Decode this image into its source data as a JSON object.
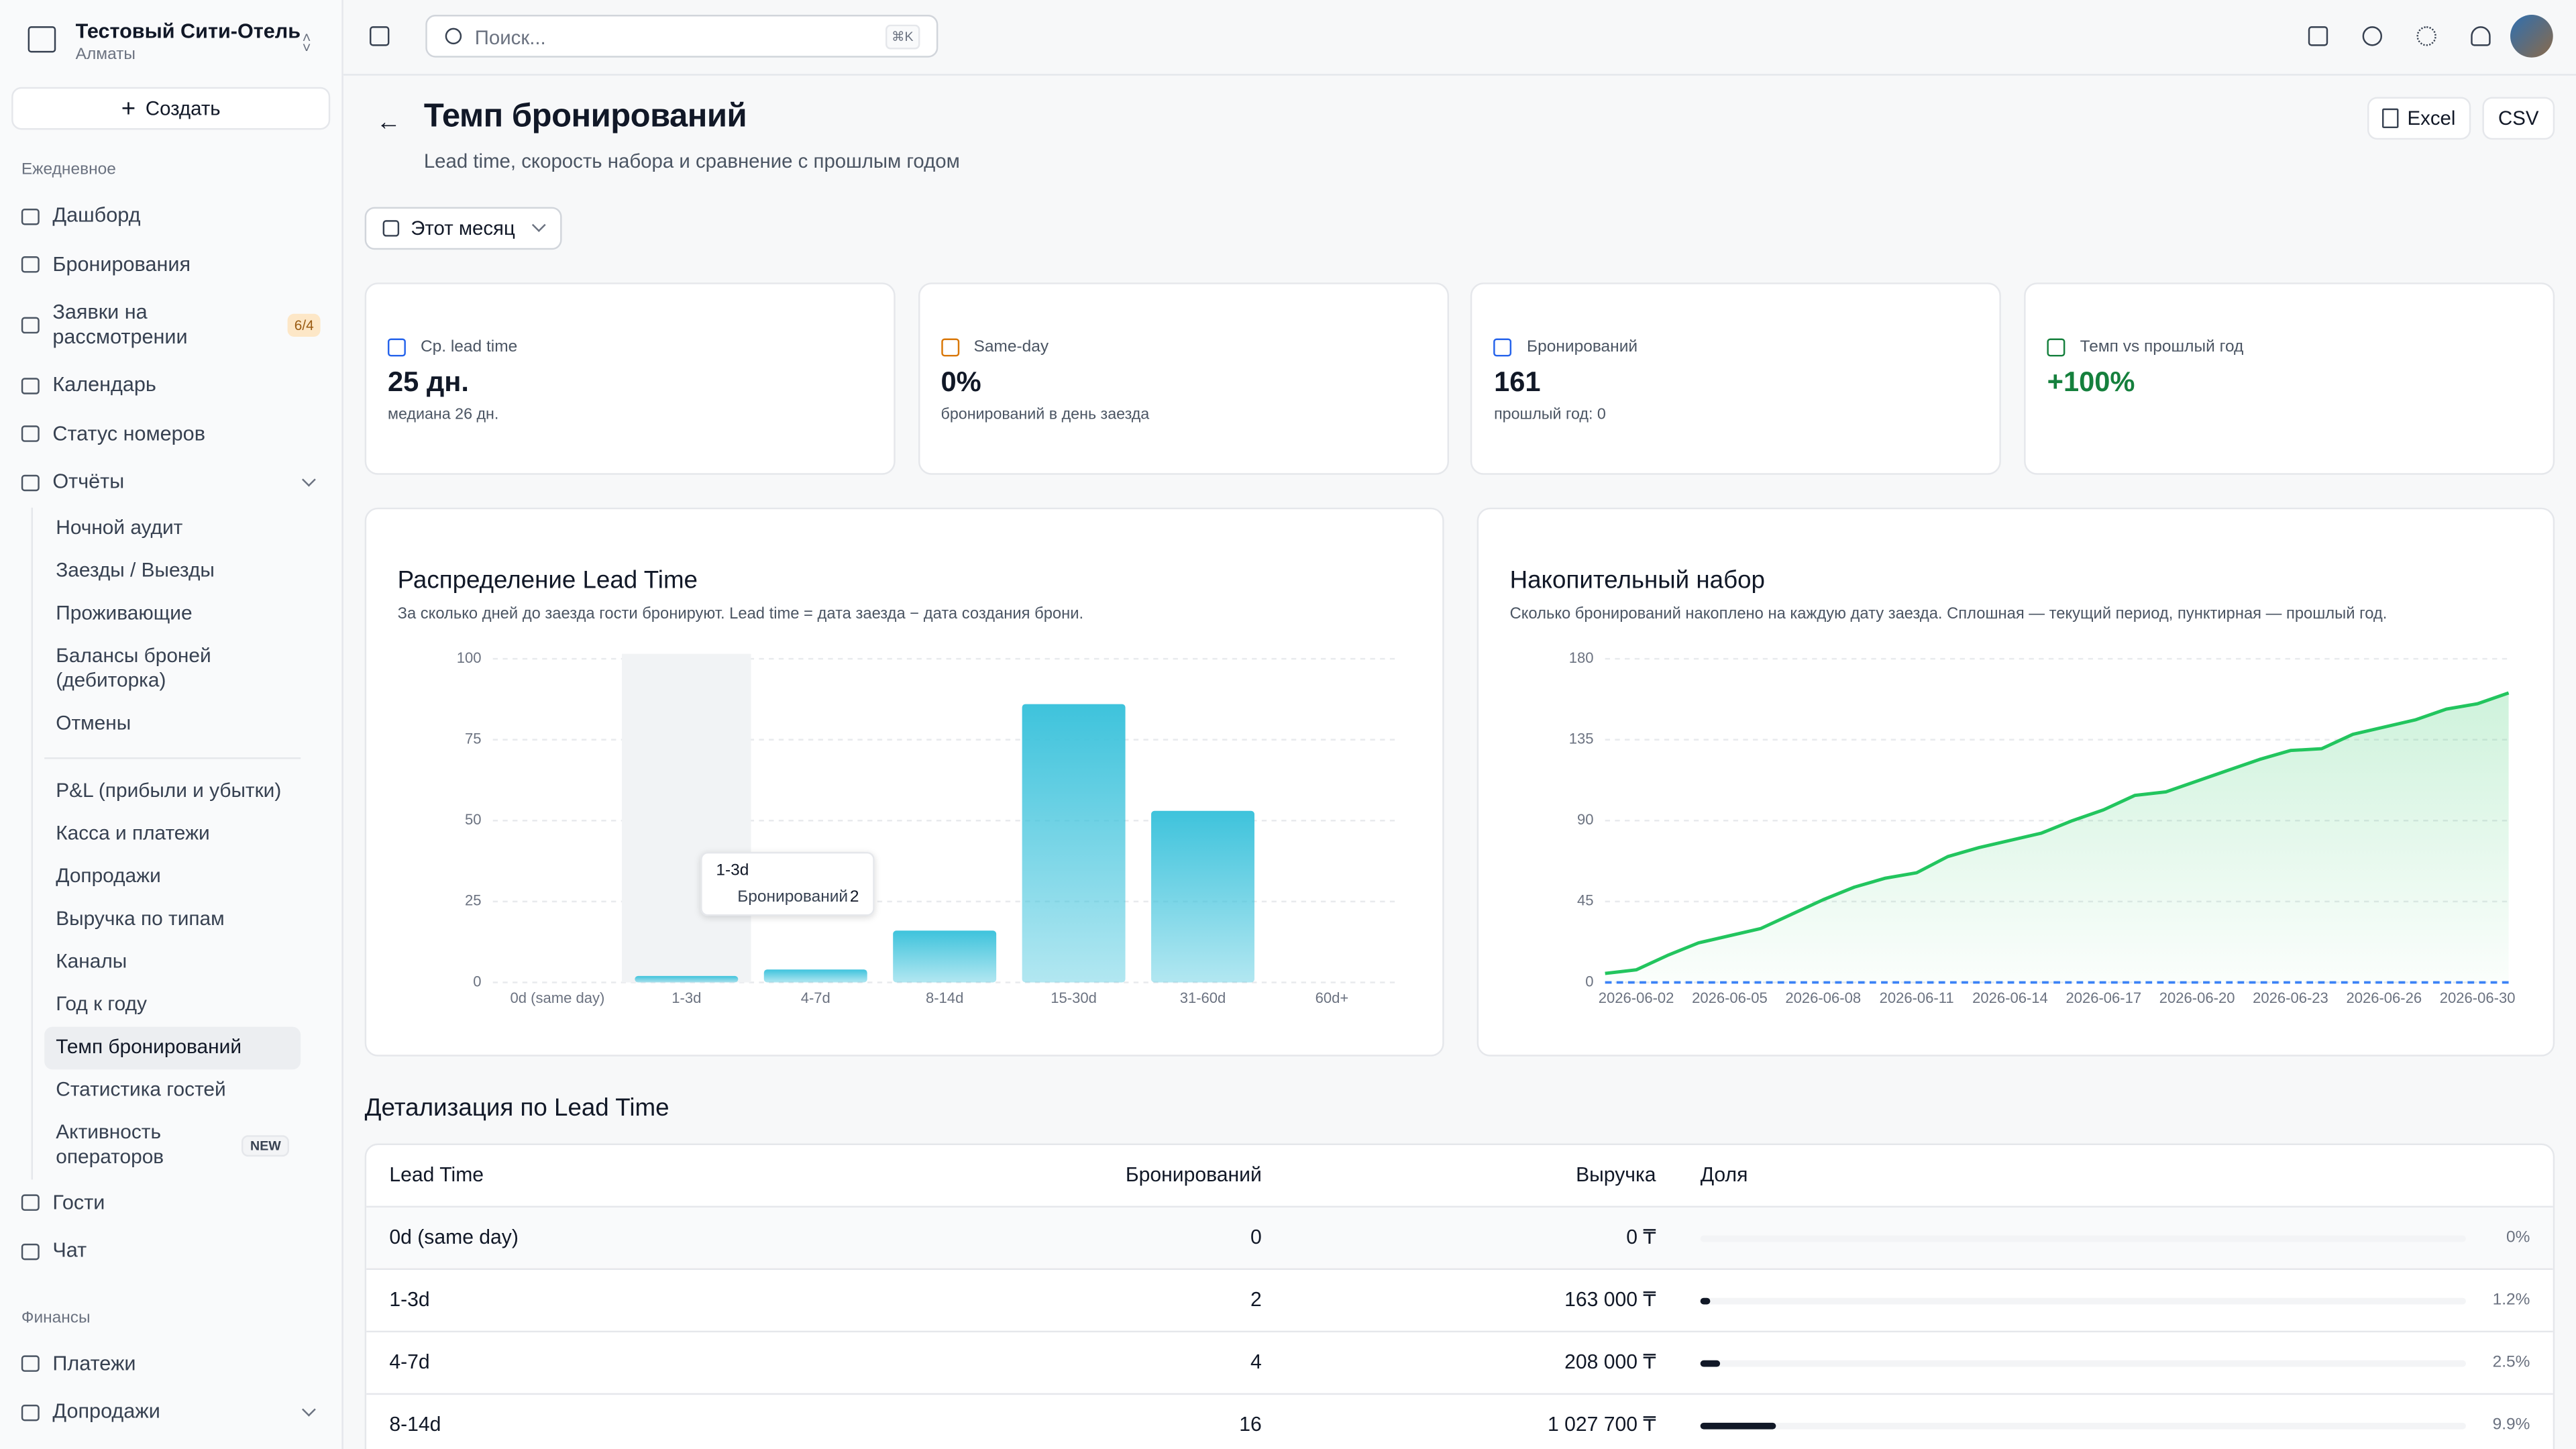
{
  "sidebar": {
    "hotel": "Тестовый Сити-Отель",
    "city": "Алматы",
    "create": "Создать",
    "sections": [
      {
        "title": "Ежедневное",
        "items": [
          {
            "label": "Дашборд"
          },
          {
            "label": "Бронирования"
          },
          {
            "label": "Заявки на рассмотрении",
            "badge": "6/4"
          },
          {
            "label": "Календарь"
          },
          {
            "label": "Статус номеров"
          },
          {
            "label": "Отчёты",
            "collapsible": true,
            "groups": [
              [
                {
                  "label": "Ночной аудит"
                },
                {
                  "label": "Заезды / Выезды"
                },
                {
                  "label": "Проживающие"
                },
                {
                  "label": "Балансы броней (дебиторка)"
                },
                {
                  "label": "Отмены"
                }
              ],
              [
                {
                  "label": "P&L (прибыли и убытки)"
                },
                {
                  "label": "Касса и платежи"
                },
                {
                  "label": "Допродажи"
                },
                {
                  "label": "Выручка по типам"
                },
                {
                  "label": "Каналы"
                },
                {
                  "label": "Год к году"
                },
                {
                  "label": "Темп бронирований",
                  "active": true
                },
                {
                  "label": "Статистика гостей"
                },
                {
                  "label": "Активность операторов",
                  "badge": "NEW"
                }
              ]
            ]
          },
          {
            "label": "Гости"
          },
          {
            "label": "Чат"
          }
        ]
      },
      {
        "title": "Финансы",
        "items": [
          {
            "label": "Платежи"
          },
          {
            "label": "Допродажи",
            "collapsible": true
          }
        ]
      }
    ]
  },
  "header": {
    "search": "Поиск...",
    "shortcut": "⌘K"
  },
  "page": {
    "title": "Темп бронирований",
    "subtitle": "Lead time, скорость набора и сравнение с прошлым годом",
    "export": [
      "Excel",
      "CSV"
    ],
    "period": "Этот месяц"
  },
  "kpis": [
    {
      "label": "Ср. lead time",
      "value": "25 дн.",
      "note": "медиана 26 дн.",
      "color": "#2563eb"
    },
    {
      "label": "Same-day",
      "value": "0%",
      "note": "бронирований в день заезда",
      "color": "#d97706"
    },
    {
      "label": "Бронирований",
      "value": "161",
      "note": "прошлый год: 0",
      "color": "#2563eb"
    },
    {
      "label": "Темп vs прошлый год",
      "value": "+100%",
      "color": "#15803d"
    }
  ],
  "chart_data": [
    {
      "type": "bar",
      "title": "Распределение Lead Time",
      "subtitle": "За сколько дней до заезда гости бронируют. Lead time = дата заезда − дата создания брони.",
      "categories": [
        "0d (same day)",
        "1-3d",
        "4-7d",
        "8-14d",
        "15-30d",
        "31-60d",
        "60d+"
      ],
      "series": [
        {
          "name": "Бронирований",
          "color": "#3ec3dc",
          "values": [
            0,
            2,
            4,
            16,
            86,
            53,
            0
          ]
        }
      ],
      "ylim": [
        0,
        100
      ],
      "yticks": [
        0,
        25,
        50,
        75,
        100
      ],
      "grid": true,
      "highlight": 1
    },
    {
      "type": "line",
      "title": "Накопительный набор",
      "subtitle": "Сколько бронирований накоплено на каждую дату заезда. Сплошная — текущий период, пунктирная — прошлый год.",
      "categories": [
        null,
        "2026-06-02",
        null,
        null,
        "2026-06-05",
        null,
        null,
        "2026-06-08",
        null,
        null,
        "2026-06-11",
        null,
        null,
        "2026-06-14",
        null,
        null,
        "2026-06-17",
        null,
        null,
        "2026-06-20",
        null,
        null,
        "2026-06-23",
        null,
        null,
        "2026-06-26",
        null,
        null,
        "2026-06-30",
        null
      ],
      "series": [
        {
          "color": "#22c55e",
          "area": true,
          "values": [
            5,
            7,
            15,
            22,
            26,
            30,
            38,
            46,
            53,
            58,
            61,
            70,
            75,
            79,
            83,
            90,
            96,
            104,
            106,
            112,
            118,
            124,
            129,
            130,
            138,
            142,
            146,
            152,
            155,
            161
          ]
        },
        {
          "color": "#3b82f6",
          "dashed": true,
          "values": [
            0,
            0,
            0,
            0,
            0,
            0,
            0,
            0,
            0,
            0,
            0,
            0,
            0,
            0,
            0,
            0,
            0,
            0,
            0,
            0,
            0,
            0,
            0,
            0,
            0,
            0,
            0,
            0,
            0,
            0
          ]
        }
      ],
      "ylim": [
        0,
        180
      ],
      "yticks": [
        0,
        45,
        90,
        135,
        180
      ],
      "grid": true
    }
  ],
  "table": {
    "title": "Детализация по Lead Time",
    "columns": [
      "Lead Time",
      "Бронирований",
      "Выручка",
      "Доля"
    ],
    "rows": [
      {
        "lead_time": "0d (same day)",
        "bookings": "0",
        "revenue": "0 ₸",
        "share": {
          "value": 0,
          "label": "0%"
        }
      },
      {
        "lead_time": "1-3d",
        "bookings": "2",
        "revenue": "163 000 ₸",
        "share": {
          "value": 1.2,
          "label": "1.2%"
        }
      },
      {
        "lead_time": "4-7d",
        "bookings": "4",
        "revenue": "208 000 ₸",
        "share": {
          "value": 2.5,
          "label": "2.5%"
        }
      },
      {
        "lead_time": "8-14d",
        "bookings": "16",
        "revenue": "1 027 700 ₸",
        "share": {
          "value": 9.9,
          "label": "9.9%"
        }
      }
    ]
  }
}
